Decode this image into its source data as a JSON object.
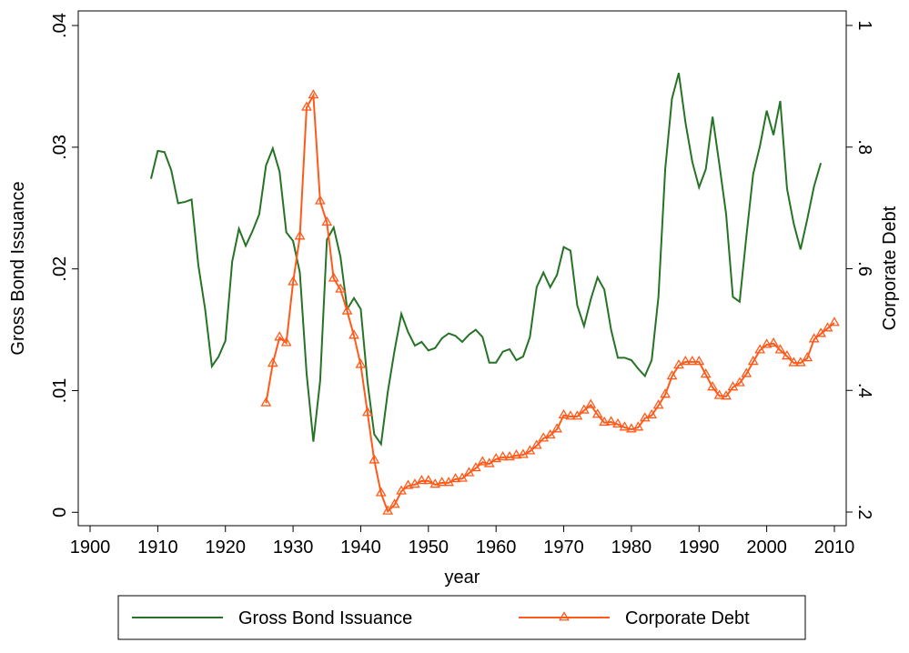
{
  "chart_data": {
    "type": "line",
    "x_label": "year",
    "y_label": "Gross Bond Issuance",
    "y2_label": "Corporate Debt",
    "xlim": [
      1898.25,
      2011.75
    ],
    "xticks": [
      1900,
      1910,
      1920,
      1930,
      1940,
      1950,
      1960,
      1970,
      1980,
      1990,
      2000,
      2010
    ],
    "ylim": [
      -0.0011,
      0.0412
    ],
    "yticks": [
      0,
      {
        "value": 0.01,
        "label": ".01"
      },
      {
        "value": 0.02,
        "label": ".02"
      },
      {
        "value": 0.03,
        "label": ".03"
      },
      {
        "value": 0.04,
        "label": ".04"
      }
    ],
    "y2lim": [
      0.1776,
      1.0239
    ],
    "y2ticks": [
      {
        "value": 0.2,
        "label": ".2"
      },
      {
        "value": 0.4,
        "label": ".4"
      },
      {
        "value": 0.6,
        "label": ".6"
      },
      {
        "value": 0.8,
        "label": ".8"
      },
      1
    ],
    "legend": "bottom",
    "series": [
      {
        "name": "Gross Bond Issuance",
        "color": "#267326",
        "x": [
          1909,
          1910,
          1911,
          1912,
          1913,
          1914,
          1915,
          1916,
          1917,
          1918,
          1919,
          1920,
          1921,
          1922,
          1923,
          1924,
          1925,
          1926,
          1927,
          1928,
          1929,
          1930,
          1931,
          1932,
          1933,
          1934,
          1935,
          1936,
          1937,
          1938,
          1939,
          1940,
          1941,
          1942,
          1943,
          1944,
          1945,
          1946,
          1947,
          1948,
          1949,
          1950,
          1951,
          1952,
          1953,
          1954,
          1955,
          1956,
          1957,
          1958,
          1959,
          1960,
          1961,
          1962,
          1963,
          1964,
          1965,
          1966,
          1967,
          1968,
          1969,
          1970,
          1971,
          1972,
          1973,
          1974,
          1975,
          1976,
          1977,
          1978,
          1979,
          1980,
          1981,
          1982,
          1983,
          1984,
          1985,
          1986,
          1987,
          1988,
          1989,
          1990,
          1991,
          1992,
          1993,
          1994,
          1995,
          1996,
          1997,
          1998,
          1999,
          2000,
          2001,
          2002,
          2003,
          2004,
          2005,
          2006,
          2007,
          2008
        ],
        "values": [
          0.0274,
          0.0297,
          0.0296,
          0.0281,
          0.0254,
          0.0255,
          0.0257,
          0.0203,
          0.0167,
          0.012,
          0.0128,
          0.0141,
          0.0206,
          0.0233,
          0.0219,
          0.0231,
          0.0245,
          0.0285,
          0.0299,
          0.028,
          0.023,
          0.0223,
          0.0197,
          0.0114,
          0.0058,
          0.0108,
          0.0224,
          0.0234,
          0.021,
          0.0167,
          0.0176,
          0.0167,
          0.0107,
          0.0064,
          0.0056,
          0.0099,
          0.0133,
          0.0163,
          0.0148,
          0.0137,
          0.014,
          0.0133,
          0.0135,
          0.0143,
          0.0147,
          0.0145,
          0.014,
          0.0146,
          0.015,
          0.0144,
          0.0123,
          0.0123,
          0.0132,
          0.0134,
          0.0125,
          0.0128,
          0.0144,
          0.0185,
          0.0197,
          0.0185,
          0.0195,
          0.0218,
          0.0215,
          0.017,
          0.0153,
          0.0175,
          0.0193,
          0.0183,
          0.015,
          0.0127,
          0.0127,
          0.0125,
          0.0118,
          0.0112,
          0.0125,
          0.0177,
          0.0282,
          0.034,
          0.0361,
          0.032,
          0.0288,
          0.0267,
          0.0282,
          0.0325,
          0.0286,
          0.0245,
          0.0177,
          0.0173,
          0.0227,
          0.0278,
          0.0301,
          0.033,
          0.031,
          0.0338,
          0.0266,
          0.0237,
          0.0216,
          0.0241,
          0.0268,
          0.0287
        ]
      },
      {
        "name": "Corporate Debt",
        "color": "#ff5a1a",
        "axis": "y2",
        "marker": "triangle",
        "x": [
          1926,
          1927,
          1928,
          1929,
          1930,
          1931,
          1932,
          1933,
          1934,
          1935,
          1936,
          1937,
          1938,
          1939,
          1940,
          1941,
          1942,
          1943,
          1944,
          1945,
          1946,
          1947,
          1948,
          1949,
          1950,
          1951,
          1952,
          1953,
          1954,
          1955,
          1956,
          1957,
          1958,
          1959,
          1960,
          1961,
          1962,
          1963,
          1964,
          1965,
          1966,
          1967,
          1968,
          1969,
          1970,
          1971,
          1972,
          1973,
          1974,
          1975,
          1976,
          1977,
          1978,
          1979,
          1980,
          1981,
          1982,
          1983,
          1984,
          1985,
          1986,
          1987,
          1988,
          1989,
          1990,
          1991,
          1992,
          1993,
          1994,
          1995,
          1996,
          1997,
          1998,
          1999,
          2000,
          2001,
          2002,
          2003,
          2004,
          2005,
          2006,
          2007,
          2008,
          2009,
          2010
        ],
        "values": [
          0.379,
          0.444,
          0.487,
          0.478,
          0.578,
          0.653,
          0.865,
          0.885,
          0.711,
          0.676,
          0.584,
          0.566,
          0.53,
          0.49,
          0.442,
          0.363,
          0.285,
          0.231,
          0.201,
          0.212,
          0.234,
          0.243,
          0.245,
          0.251,
          0.251,
          0.245,
          0.248,
          0.248,
          0.254,
          0.255,
          0.264,
          0.272,
          0.282,
          0.279,
          0.287,
          0.29,
          0.29,
          0.293,
          0.294,
          0.3,
          0.309,
          0.321,
          0.326,
          0.336,
          0.359,
          0.357,
          0.357,
          0.367,
          0.376,
          0.36,
          0.347,
          0.348,
          0.344,
          0.339,
          0.336,
          0.339,
          0.354,
          0.359,
          0.375,
          0.393,
          0.423,
          0.441,
          0.447,
          0.447,
          0.447,
          0.426,
          0.405,
          0.391,
          0.39,
          0.405,
          0.412,
          0.427,
          0.447,
          0.466,
          0.475,
          0.477,
          0.466,
          0.456,
          0.445,
          0.445,
          0.453,
          0.484,
          0.493,
          0.502,
          0.511
        ]
      }
    ]
  }
}
